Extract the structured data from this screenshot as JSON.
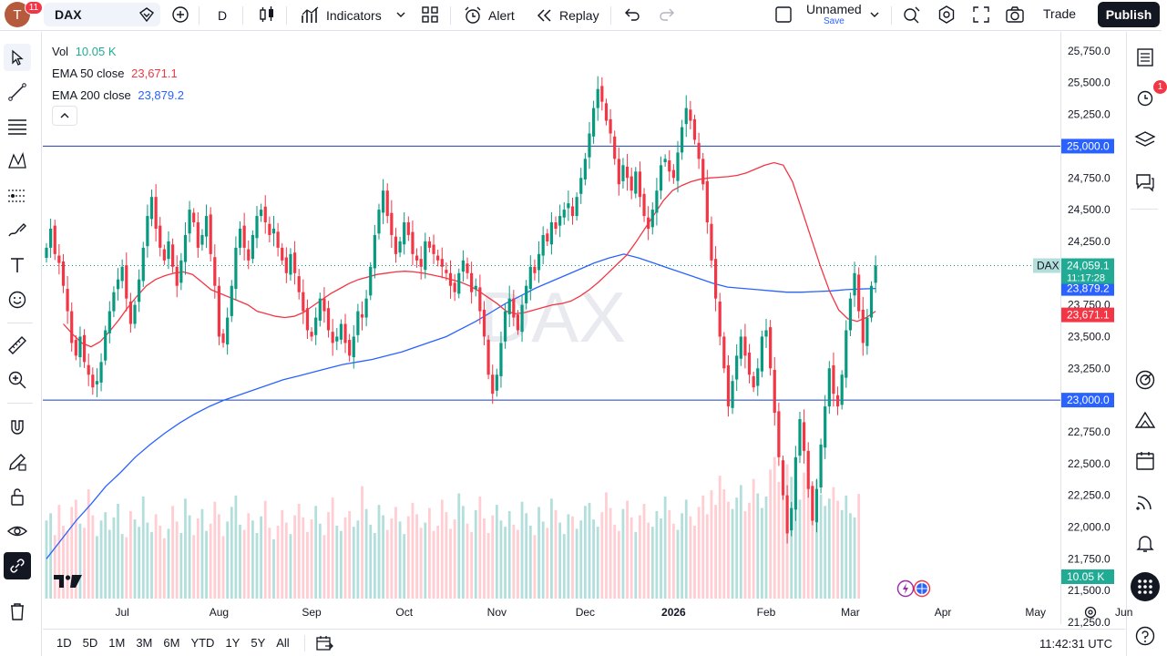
{
  "topbar": {
    "avatar_letter": "T",
    "avatar_badge": "11",
    "symbol": "DAX",
    "interval": "D",
    "indicators_label": "Indicators",
    "alert_label": "Alert",
    "replay_label": "Replay",
    "layout_name": "Unnamed",
    "save_label": "Save",
    "trade_label": "Trade",
    "publish_label": "Publish"
  },
  "legend": {
    "vol_label": "Vol",
    "vol_value": "10.05 K",
    "ema50_label": "EMA 50 close",
    "ema50_value": "23,671.1",
    "ema200_label": "EMA 200 close",
    "ema200_value": "23,879.2"
  },
  "watermark": "DAX",
  "colors": {
    "up": "#089981",
    "down": "#f23645",
    "ema50": "#f23645",
    "ema200": "#2962ff",
    "hline": "#1e3fa8",
    "vol_up": "#b2dfdb",
    "vol_down": "#ffcdd2"
  },
  "right_toolbar": {
    "alert_badge": "1"
  },
  "bottombar": {
    "ranges": [
      "1D",
      "5D",
      "1M",
      "3M",
      "6M",
      "YTD",
      "1Y",
      "5Y",
      "All"
    ],
    "clock": "11:42:31 UTC"
  },
  "chart_data": {
    "type": "candlestick",
    "symbol": "DAX",
    "interval": "D",
    "y_axis": {
      "range": [
        21250,
        25900
      ],
      "ticks": [
        21250,
        21500,
        21750,
        22000,
        22250,
        22500,
        22750,
        23000,
        23250,
        23500,
        23750,
        24000,
        24250,
        24500,
        24750,
        25000,
        25250,
        25500,
        25750
      ],
      "tick_labels": [
        "21,250.0",
        "21,500.0",
        "21,750.0",
        "22,000.0",
        "22,250.0",
        "22,500.0",
        "22,750.0",
        "23,000.0",
        "23,250.0",
        "23,500.0",
        "23,750.0",
        "24,000.0",
        "24,250.0",
        "24,500.0",
        "24,750.0",
        "25,000.0",
        "25,250.0",
        "25,500.0",
        "25,750.0"
      ]
    },
    "x_axis": {
      "labels": [
        "Jul",
        "Aug",
        "Sep",
        "Oct",
        "Nov",
        "Dec",
        "2026",
        "Feb",
        "Mar",
        "Apr",
        "May",
        "Jun"
      ],
      "label_bar_index": [
        18,
        41,
        63,
        85,
        107,
        128,
        149,
        171,
        191,
        213,
        235,
        256
      ]
    },
    "horizontal_lines": [
      {
        "value": 25000,
        "label": "25,000.0"
      },
      {
        "value": 23000,
        "label": "23,000.0"
      }
    ],
    "price_labels": {
      "last": {
        "symbol": "DAX",
        "value": "24,059.1",
        "countdown": "11:17:28"
      },
      "ema200": "23,879.2",
      "ema50": "23,671.1",
      "volume": "10.05 K"
    },
    "closes": [
      24200,
      24350,
      24150,
      24080,
      23900,
      23700,
      23450,
      23350,
      23500,
      23300,
      23200,
      23100,
      23150,
      23300,
      23550,
      23700,
      23850,
      23950,
      24050,
      23800,
      23600,
      23750,
      23950,
      24200,
      24450,
      24600,
      24350,
      24200,
      24100,
      24250,
      24050,
      23900,
      24100,
      24300,
      24500,
      24400,
      24200,
      24300,
      24450,
      24150,
      23900,
      23500,
      23450,
      23650,
      23900,
      24200,
      24350,
      24200,
      24100,
      24300,
      24450,
      24500,
      24400,
      24300,
      24350,
      24200,
      24100,
      24000,
      24150,
      24000,
      23850,
      23700,
      23550,
      23500,
      23650,
      23800,
      23700,
      23550,
      23450,
      23500,
      23600,
      23450,
      23350,
      23500,
      23700,
      23650,
      23800,
      24050,
      24300,
      24500,
      24650,
      24450,
      24300,
      24150,
      24250,
      24400,
      24300,
      24150,
      24100,
      24050,
      24250,
      24200,
      24150,
      24100,
      24050,
      24000,
      23900,
      23850,
      24000,
      24100,
      24000,
      23850,
      23900,
      23700,
      23500,
      23200,
      23050,
      23200,
      23450,
      23700,
      23800,
      23650,
      23550,
      23750,
      23900,
      24050,
      24000,
      24150,
      24300,
      24250,
      24400,
      24350,
      24450,
      24500,
      24550,
      24450,
      24600,
      24750,
      24900,
      25100,
      25300,
      25450,
      25350,
      25200,
      25100,
      24900,
      24700,
      24850,
      24750,
      24650,
      24800,
      24600,
      24450,
      24350,
      24500,
      24650,
      24850,
      24900,
      24800,
      24750,
      24950,
      25150,
      25300,
      25200,
      25050,
      24900,
      24700,
      24400,
      24100,
      23800,
      23500,
      23250,
      22950,
      23150,
      23350,
      23500,
      23350,
      23200,
      23100,
      23250,
      23500,
      23550,
      23250,
      22900,
      22550,
      22250,
      21950,
      22150,
      22550,
      22850,
      22600,
      22300,
      22050,
      22300,
      22650,
      22950,
      23250,
      23050,
      22950,
      23200,
      23550,
      23800,
      24000,
      23700,
      23450,
      23650,
      23900,
      24059.1
    ],
    "ema50": [
      23600,
      23520,
      23450,
      23420,
      23460,
      23540,
      23630,
      23730,
      23820,
      23900,
      23950,
      23980,
      24000,
      24010,
      23990,
      23930,
      23870,
      23840,
      23810,
      23780,
      23750,
      23700,
      23680,
      23660,
      23650,
      23660,
      23690,
      23740,
      23790,
      23840,
      23880,
      23920,
      23950,
      23970,
      23990,
      24000,
      24010,
      24015,
      24010,
      24000,
      23985,
      23970,
      23950,
      23930,
      23900,
      23860,
      23810,
      23760,
      23700,
      23680,
      23690,
      23710,
      23730,
      23750,
      23760,
      23780,
      23820,
      23870,
      23930,
      24000,
      24070,
      24140,
      24240,
      24350,
      24460,
      24570,
      24650,
      24690,
      24720,
      24740,
      24750,
      24755,
      24760,
      24770,
      24790,
      24820,
      24850,
      24870,
      24850,
      24720,
      24500,
      24280,
      24060,
      23860,
      23710,
      23640,
      23620,
      23650,
      23700
    ],
    "ema50_start_index": 0,
    "ema50_step_bars": 2.2,
    "ema200": [
      21750,
      21900,
      22050,
      22180,
      22320,
      22430,
      22550,
      22650,
      22740,
      22820,
      22890,
      22950,
      23000,
      23040,
      23080,
      23120,
      23160,
      23190,
      23220,
      23250,
      23280,
      23300,
      23320,
      23350,
      23380,
      23420,
      23460,
      23500,
      23560,
      23620,
      23690,
      23760,
      23820,
      23880,
      23930,
      23980,
      24030,
      24080,
      24120,
      24150,
      24120,
      24080,
      24040,
      24000,
      23960,
      23920,
      23890,
      23880,
      23870,
      23860,
      23850,
      23850,
      23855,
      23860,
      23870,
      23875,
      23879.2
    ],
    "ema200_step_bars": 3.55,
    "volumes": [
      7.5,
      8.2,
      6.1,
      9.0,
      7.0,
      6.5,
      8.8,
      9.5,
      7.2,
      6.8,
      10.5,
      8.0,
      6.0,
      7.5,
      8.3,
      6.6,
      7.8,
      9.1,
      6.2,
      5.9,
      8.4,
      7.6,
      6.9,
      9.8,
      7.3,
      6.4,
      8.1,
      7.0,
      5.8,
      6.7,
      8.9,
      7.4,
      6.3,
      9.6,
      8.0,
      6.1,
      7.7,
      8.6,
      6.5,
      7.2,
      9.3,
      8.1,
      6.0,
      7.4,
      8.8,
      9.9,
      7.1,
      6.6,
      8.2,
      7.5,
      6.3,
      7.9,
      9.4,
      6.8,
      5.7,
      7.0,
      8.5,
      7.3,
      6.2,
      8.0,
      9.1,
      7.8,
      6.4,
      7.6,
      8.9,
      7.2,
      6.1,
      8.3,
      9.7,
      7.0,
      6.5,
      7.8,
      8.4,
      6.9,
      7.5,
      10.8,
      8.6,
      7.1,
      6.3,
      9.0,
      8.0,
      6.6,
      7.7,
      8.8,
      7.4,
      6.2,
      7.9,
      9.2,
      8.1,
      6.8,
      7.3,
      8.7,
      6.5,
      7.0,
      9.5,
      8.3,
      6.7,
      7.6,
      10.1,
      8.9,
      7.2,
      6.4,
      8.5,
      9.8,
      7.7,
      6.3,
      8.0,
      9.0,
      7.5,
      6.9,
      8.4,
      7.1,
      6.6,
      9.3,
      8.2,
      7.0,
      6.1,
      8.8,
      7.4,
      6.8,
      9.6,
      8.5,
      7.3,
      6.2,
      8.1,
      7.9,
      6.7,
      7.5,
      8.9,
      9.2,
      7.6,
      6.9,
      8.3,
      10.2,
      8.7,
      7.1,
      6.5,
      8.6,
      9.4,
      7.8,
      6.4,
      8.0,
      9.1,
      7.3,
      6.9,
      8.4,
      7.7,
      9.8,
      8.5,
      7.2,
      6.6,
      8.2,
      9.5,
      7.9,
      7.0,
      8.8,
      9.9,
      8.1,
      10.4,
      9.0,
      11.8,
      10.5,
      9.3,
      8.6,
      9.7,
      10.9,
      8.4,
      9.2,
      11.5,
      10.1,
      8.7,
      9.8,
      12.4,
      13.6,
      11.2,
      10.6,
      12.9,
      11.7,
      10.3,
      9.5,
      12.1,
      10.8,
      9.1,
      11.4,
      10.0,
      8.9,
      9.6,
      10.7,
      9.4,
      8.5,
      9.9,
      8.2,
      7.8,
      10.05
    ],
    "volume_scale_max": 14
  }
}
